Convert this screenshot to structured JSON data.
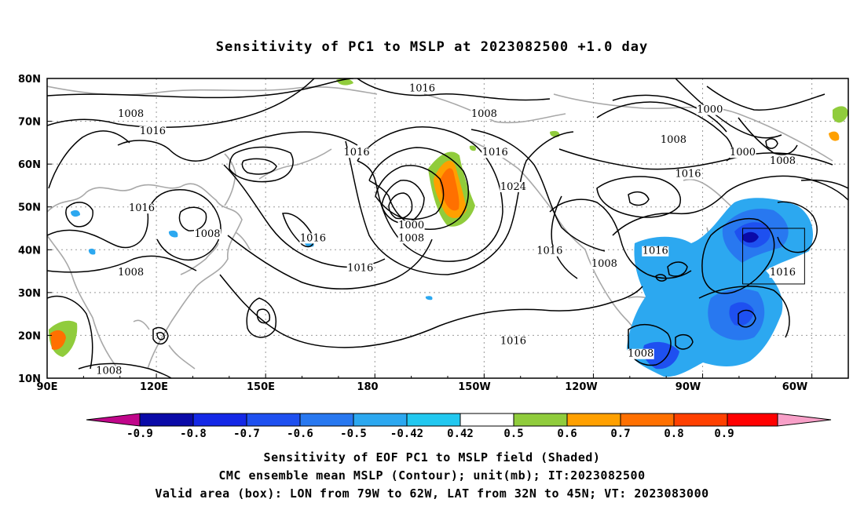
{
  "title": "Sensitivity of PC1 to MSLP at 2023082500 +1.0 day",
  "footer": {
    "line1": "Sensitivity of EOF PC1 to MSLP field (Shaded)",
    "line2": "CMC ensemble mean MSLP (Contour); unit(mb); IT:2023082500",
    "line3": "Valid area (box): LON from 79W to 62W, LAT from 32N to 45N; VT: 2023083000"
  },
  "map": {
    "lat_ticks": [
      "80N",
      "70N",
      "60N",
      "50N",
      "40N",
      "30N",
      "20N",
      "10N"
    ],
    "lon_ticks": [
      "90E",
      "120E",
      "150E",
      "180",
      "150W",
      "120W",
      "90W",
      "60W"
    ],
    "valid_box": {
      "lon": [
        "79W",
        "62W"
      ],
      "lat": [
        "32N",
        "45N"
      ]
    },
    "contour_labels": [
      {
        "text": "1016",
        "lon": 193,
        "lat": 77
      },
      {
        "text": "1008",
        "lon": 113,
        "lat": 71
      },
      {
        "text": "1016",
        "lon": 119,
        "lat": 67
      },
      {
        "text": "1008",
        "lon": 210,
        "lat": 71
      },
      {
        "text": "1000",
        "lon": 272,
        "lat": 72
      },
      {
        "text": "1008",
        "lon": 262,
        "lat": 65
      },
      {
        "text": "1000",
        "lon": 281,
        "lat": 62
      },
      {
        "text": "1008",
        "lon": 292,
        "lat": 60
      },
      {
        "text": "1016",
        "lon": 175,
        "lat": 62
      },
      {
        "text": "1016",
        "lon": 213,
        "lat": 62
      },
      {
        "text": "1024",
        "lon": 218,
        "lat": 54
      },
      {
        "text": "1016",
        "lon": 266,
        "lat": 57
      },
      {
        "text": "1016",
        "lon": 116,
        "lat": 49
      },
      {
        "text": "1008",
        "lon": 134,
        "lat": 43
      },
      {
        "text": "1016",
        "lon": 163,
        "lat": 42
      },
      {
        "text": "1000",
        "lon": 190,
        "lat": 45
      },
      {
        "text": "1008",
        "lon": 190,
        "lat": 42
      },
      {
        "text": "1016",
        "lon": 176,
        "lat": 35
      },
      {
        "text": "1016",
        "lon": 228,
        "lat": 39
      },
      {
        "text": "1016",
        "lon": 257,
        "lat": 39
      },
      {
        "text": "1008",
        "lon": 113,
        "lat": 34
      },
      {
        "text": "1008",
        "lon": 243,
        "lat": 36
      },
      {
        "text": "1016",
        "lon": 292,
        "lat": 34
      },
      {
        "text": "1016",
        "lon": 218,
        "lat": 18
      },
      {
        "text": "1008",
        "lon": 253,
        "lat": 15
      },
      {
        "text": "1008",
        "lon": 107,
        "lat": 11
      }
    ]
  },
  "colorbar": {
    "labels": [
      "-0.9",
      "-0.8",
      "-0.7",
      "-0.6",
      "-0.5",
      "-0.42",
      "0.42",
      "0.5",
      "0.6",
      "0.7",
      "0.8",
      "0.9"
    ],
    "colors": {
      "below": "#c0068a",
      "bins": [
        "#0a0aa8",
        "#1428e6",
        "#1e50f0",
        "#2878f0",
        "#2ca8f0",
        "#22c8f0",
        "#ffffff",
        "#90cc3c",
        "#ffa000",
        "#ff7000",
        "#ff4000",
        "#ff0000"
      ],
      "above": "#f8a0c8"
    }
  }
}
